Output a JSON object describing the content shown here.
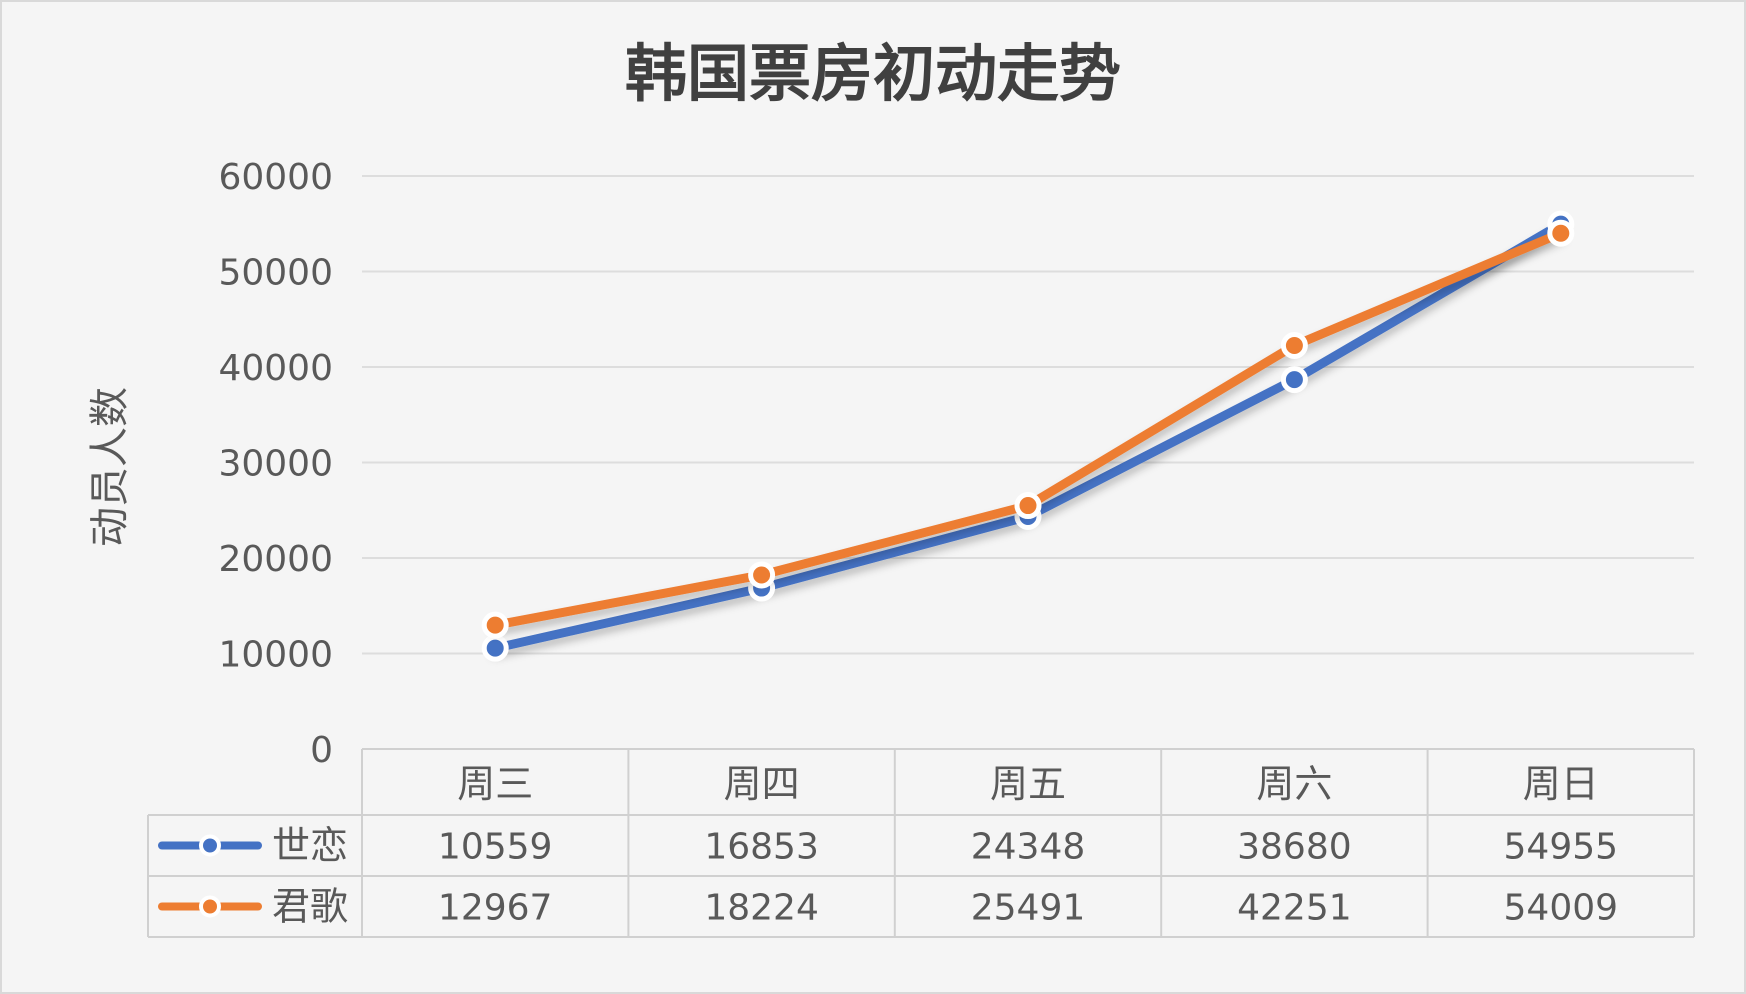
{
  "chart_data": {
    "type": "line",
    "title": "韩国票房初动走势",
    "ylabel": "动员人数",
    "xlabel": "",
    "categories": [
      "周三",
      "周四",
      "周五",
      "周六",
      "周日"
    ],
    "ylim": [
      0,
      60000
    ],
    "yticks": [
      "0",
      "10000",
      "20000",
      "30000",
      "40000",
      "50000",
      "60000"
    ],
    "grid": true,
    "legend": "data-table",
    "series": [
      {
        "name": "世恋",
        "color": "#4472C4",
        "values": [
          10559,
          16853,
          24348,
          38680,
          54955
        ]
      },
      {
        "name": "君歌",
        "color": "#ED7D31",
        "values": [
          12967,
          18224,
          25491,
          42251,
          54009
        ]
      }
    ]
  }
}
